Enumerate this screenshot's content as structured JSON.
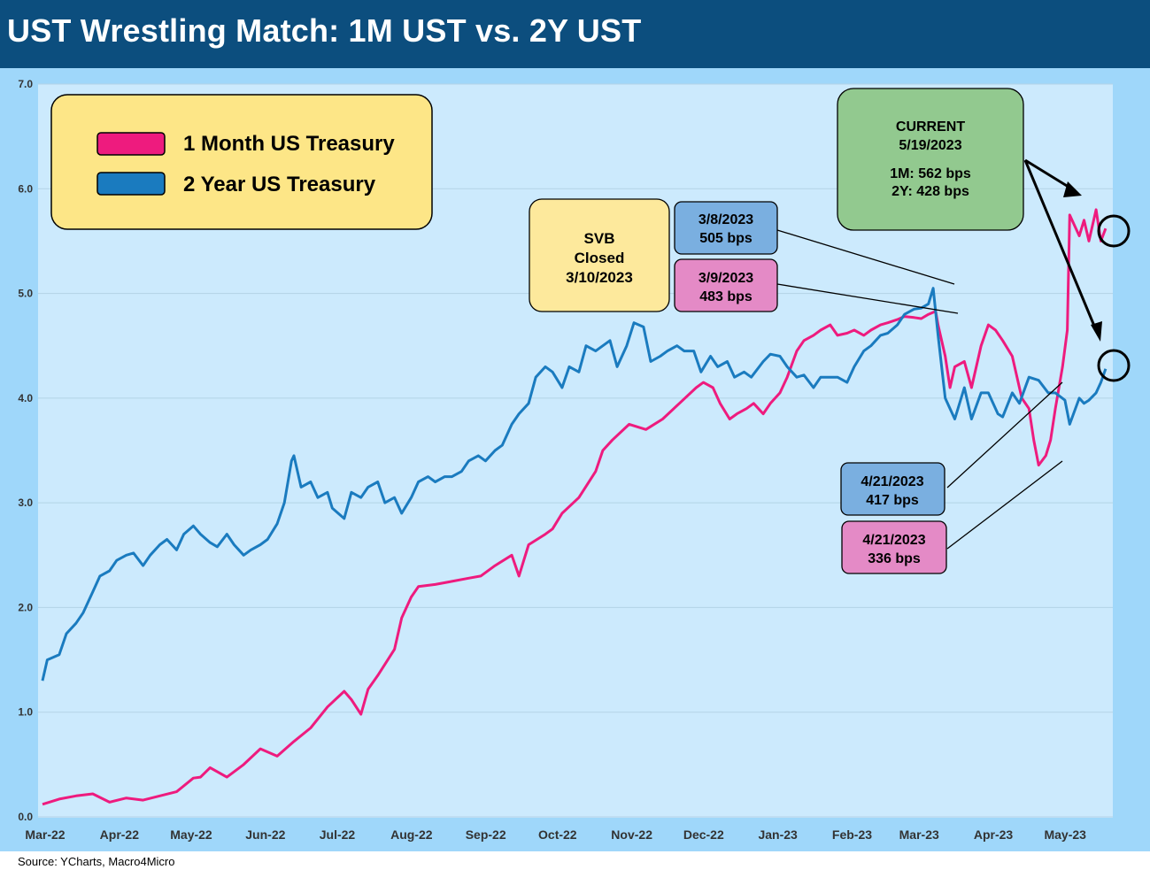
{
  "header": {
    "title": "UST Wrestling Match: 1M UST vs. 2Y UST"
  },
  "footer": {
    "source": "Source: YCharts, Macro4Micro"
  },
  "colors": {
    "header_bg": "#0c4e7e",
    "frame_bg": "#9fd7fa",
    "plot_bg": "#cceafd",
    "series_1m": "#ee1b7e",
    "series_2y": "#1a7bbf"
  },
  "chart_data": {
    "type": "line",
    "title": "UST Wrestling Match: 1M UST vs. 2Y UST",
    "xlabel": "",
    "ylabel": "",
    "ylim": [
      0,
      7
    ],
    "yticks": [
      "0.0",
      "1.0",
      "2.0",
      "3.0",
      "4.0",
      "5.0",
      "6.0",
      "7.0"
    ],
    "xticks": [
      "Mar-22",
      "Apr-22",
      "May-22",
      "Jun-22",
      "Jul-22",
      "Aug-22",
      "Sep-22",
      "Oct-22",
      "Nov-22",
      "Dec-22",
      "Jan-23",
      "Feb-23",
      "Mar-23",
      "Apr-23",
      "May-23"
    ],
    "grid": true,
    "legend_position": "top-left",
    "series": [
      {
        "name": "1 Month US Treasury",
        "color": "#ee1b7e",
        "points": [
          [
            "2022-03-01",
            0.12
          ],
          [
            "2022-03-08",
            0.17
          ],
          [
            "2022-03-15",
            0.2
          ],
          [
            "2022-03-22",
            0.22
          ],
          [
            "2022-03-29",
            0.14
          ],
          [
            "2022-04-05",
            0.18
          ],
          [
            "2022-04-12",
            0.16
          ],
          [
            "2022-04-19",
            0.2
          ],
          [
            "2022-04-26",
            0.24
          ],
          [
            "2022-05-03",
            0.37
          ],
          [
            "2022-05-06",
            0.38
          ],
          [
            "2022-05-10",
            0.47
          ],
          [
            "2022-05-17",
            0.38
          ],
          [
            "2022-05-24",
            0.5
          ],
          [
            "2022-05-31",
            0.65
          ],
          [
            "2022-06-07",
            0.58
          ],
          [
            "2022-06-14",
            0.72
          ],
          [
            "2022-06-21",
            0.85
          ],
          [
            "2022-06-28",
            1.05
          ],
          [
            "2022-07-05",
            1.2
          ],
          [
            "2022-07-08",
            1.12
          ],
          [
            "2022-07-12",
            0.98
          ],
          [
            "2022-07-15",
            1.22
          ],
          [
            "2022-07-19",
            1.35
          ],
          [
            "2022-07-26",
            1.6
          ],
          [
            "2022-07-29",
            1.9
          ],
          [
            "2022-08-02",
            2.1
          ],
          [
            "2022-08-05",
            2.2
          ],
          [
            "2022-08-12",
            2.22
          ],
          [
            "2022-08-19",
            2.25
          ],
          [
            "2022-08-26",
            2.28
          ],
          [
            "2022-08-31",
            2.3
          ],
          [
            "2022-09-06",
            2.4
          ],
          [
            "2022-09-13",
            2.5
          ],
          [
            "2022-09-16",
            2.3
          ],
          [
            "2022-09-20",
            2.6
          ],
          [
            "2022-09-27",
            2.7
          ],
          [
            "2022-09-30",
            2.75
          ],
          [
            "2022-10-04",
            2.9
          ],
          [
            "2022-10-11",
            3.05
          ],
          [
            "2022-10-18",
            3.3
          ],
          [
            "2022-10-21",
            3.5
          ],
          [
            "2022-10-25",
            3.6
          ],
          [
            "2022-11-01",
            3.75
          ],
          [
            "2022-11-08",
            3.7
          ],
          [
            "2022-11-15",
            3.8
          ],
          [
            "2022-11-22",
            3.95
          ],
          [
            "2022-11-29",
            4.1
          ],
          [
            "2022-12-02",
            4.15
          ],
          [
            "2022-12-06",
            4.1
          ],
          [
            "2022-12-09",
            3.95
          ],
          [
            "2022-12-13",
            3.8
          ],
          [
            "2022-12-16",
            3.85
          ],
          [
            "2022-12-20",
            3.9
          ],
          [
            "2022-12-23",
            3.95
          ],
          [
            "2022-12-27",
            3.85
          ],
          [
            "2022-12-30",
            3.95
          ],
          [
            "2023-01-03",
            4.05
          ],
          [
            "2023-01-06",
            4.2
          ],
          [
            "2023-01-10",
            4.45
          ],
          [
            "2023-01-13",
            4.55
          ],
          [
            "2023-01-17",
            4.6
          ],
          [
            "2023-01-20",
            4.65
          ],
          [
            "2023-01-24",
            4.7
          ],
          [
            "2023-01-27",
            4.6
          ],
          [
            "2023-01-31",
            4.62
          ],
          [
            "2023-02-03",
            4.65
          ],
          [
            "2023-02-07",
            4.6
          ],
          [
            "2023-02-10",
            4.65
          ],
          [
            "2023-02-14",
            4.7
          ],
          [
            "2023-02-17",
            4.72
          ],
          [
            "2023-02-21",
            4.75
          ],
          [
            "2023-02-24",
            4.78
          ],
          [
            "2023-02-28",
            4.77
          ],
          [
            "2023-03-03",
            4.76
          ],
          [
            "2023-03-06",
            4.8
          ],
          [
            "2023-03-09",
            4.83
          ],
          [
            "2023-03-10",
            4.7
          ],
          [
            "2023-03-13",
            4.4
          ],
          [
            "2023-03-15",
            4.1
          ],
          [
            "2023-03-17",
            4.3
          ],
          [
            "2023-03-21",
            4.35
          ],
          [
            "2023-03-24",
            4.1
          ],
          [
            "2023-03-28",
            4.5
          ],
          [
            "2023-03-31",
            4.7
          ],
          [
            "2023-04-03",
            4.65
          ],
          [
            "2023-04-06",
            4.55
          ],
          [
            "2023-04-10",
            4.4
          ],
          [
            "2023-04-12",
            4.2
          ],
          [
            "2023-04-14",
            4.0
          ],
          [
            "2023-04-17",
            3.9
          ],
          [
            "2023-04-19",
            3.6
          ],
          [
            "2023-04-21",
            3.36
          ],
          [
            "2023-04-24",
            3.45
          ],
          [
            "2023-04-26",
            3.6
          ],
          [
            "2023-04-28",
            3.9
          ],
          [
            "2023-05-01",
            4.3
          ],
          [
            "2023-05-03",
            4.65
          ],
          [
            "2023-05-04",
            5.75
          ],
          [
            "2023-05-08",
            5.55
          ],
          [
            "2023-05-10",
            5.7
          ],
          [
            "2023-05-12",
            5.5
          ],
          [
            "2023-05-15",
            5.8
          ],
          [
            "2023-05-17",
            5.5
          ],
          [
            "2023-05-19",
            5.62
          ]
        ]
      },
      {
        "name": "2 Year US Treasury",
        "color": "#1a7bbf",
        "points": [
          [
            "2022-03-01",
            1.3
          ],
          [
            "2022-03-03",
            1.5
          ],
          [
            "2022-03-08",
            1.55
          ],
          [
            "2022-03-11",
            1.75
          ],
          [
            "2022-03-15",
            1.85
          ],
          [
            "2022-03-18",
            1.95
          ],
          [
            "2022-03-22",
            2.15
          ],
          [
            "2022-03-25",
            2.3
          ],
          [
            "2022-03-29",
            2.35
          ],
          [
            "2022-04-01",
            2.45
          ],
          [
            "2022-04-05",
            2.5
          ],
          [
            "2022-04-08",
            2.52
          ],
          [
            "2022-04-12",
            2.4
          ],
          [
            "2022-04-15",
            2.5
          ],
          [
            "2022-04-19",
            2.6
          ],
          [
            "2022-04-22",
            2.65
          ],
          [
            "2022-04-26",
            2.55
          ],
          [
            "2022-04-29",
            2.7
          ],
          [
            "2022-05-03",
            2.78
          ],
          [
            "2022-05-06",
            2.7
          ],
          [
            "2022-05-10",
            2.62
          ],
          [
            "2022-05-13",
            2.58
          ],
          [
            "2022-05-17",
            2.7
          ],
          [
            "2022-05-20",
            2.6
          ],
          [
            "2022-05-24",
            2.5
          ],
          [
            "2022-05-27",
            2.55
          ],
          [
            "2022-05-31",
            2.6
          ],
          [
            "2022-06-03",
            2.65
          ],
          [
            "2022-06-07",
            2.8
          ],
          [
            "2022-06-10",
            3.0
          ],
          [
            "2022-06-13",
            3.4
          ],
          [
            "2022-06-14",
            3.45
          ],
          [
            "2022-06-17",
            3.15
          ],
          [
            "2022-06-21",
            3.2
          ],
          [
            "2022-06-24",
            3.05
          ],
          [
            "2022-06-28",
            3.1
          ],
          [
            "2022-06-30",
            2.95
          ],
          [
            "2022-07-05",
            2.85
          ],
          [
            "2022-07-08",
            3.1
          ],
          [
            "2022-07-12",
            3.05
          ],
          [
            "2022-07-15",
            3.15
          ],
          [
            "2022-07-19",
            3.2
          ],
          [
            "2022-07-22",
            3.0
          ],
          [
            "2022-07-26",
            3.05
          ],
          [
            "2022-07-29",
            2.9
          ],
          [
            "2022-08-02",
            3.05
          ],
          [
            "2022-08-05",
            3.2
          ],
          [
            "2022-08-09",
            3.25
          ],
          [
            "2022-08-12",
            3.2
          ],
          [
            "2022-08-16",
            3.25
          ],
          [
            "2022-08-19",
            3.25
          ],
          [
            "2022-08-23",
            3.3
          ],
          [
            "2022-08-26",
            3.4
          ],
          [
            "2022-08-30",
            3.45
          ],
          [
            "2022-09-02",
            3.4
          ],
          [
            "2022-09-06",
            3.5
          ],
          [
            "2022-09-09",
            3.55
          ],
          [
            "2022-09-13",
            3.75
          ],
          [
            "2022-09-16",
            3.85
          ],
          [
            "2022-09-20",
            3.95
          ],
          [
            "2022-09-23",
            4.2
          ],
          [
            "2022-09-27",
            4.3
          ],
          [
            "2022-09-30",
            4.25
          ],
          [
            "2022-10-04",
            4.1
          ],
          [
            "2022-10-07",
            4.3
          ],
          [
            "2022-10-11",
            4.25
          ],
          [
            "2022-10-14",
            4.5
          ],
          [
            "2022-10-18",
            4.45
          ],
          [
            "2022-10-21",
            4.5
          ],
          [
            "2022-10-24",
            4.55
          ],
          [
            "2022-10-27",
            4.3
          ],
          [
            "2022-10-31",
            4.5
          ],
          [
            "2022-11-03",
            4.72
          ],
          [
            "2022-11-07",
            4.68
          ],
          [
            "2022-11-10",
            4.35
          ],
          [
            "2022-11-14",
            4.4
          ],
          [
            "2022-11-17",
            4.45
          ],
          [
            "2022-11-21",
            4.5
          ],
          [
            "2022-11-24",
            4.45
          ],
          [
            "2022-11-28",
            4.45
          ],
          [
            "2022-12-01",
            4.25
          ],
          [
            "2022-12-05",
            4.4
          ],
          [
            "2022-12-08",
            4.3
          ],
          [
            "2022-12-12",
            4.35
          ],
          [
            "2022-12-15",
            4.2
          ],
          [
            "2022-12-19",
            4.25
          ],
          [
            "2022-12-22",
            4.2
          ],
          [
            "2022-12-27",
            4.35
          ],
          [
            "2022-12-30",
            4.42
          ],
          [
            "2023-01-03",
            4.4
          ],
          [
            "2023-01-06",
            4.3
          ],
          [
            "2023-01-10",
            4.2
          ],
          [
            "2023-01-13",
            4.22
          ],
          [
            "2023-01-17",
            4.1
          ],
          [
            "2023-01-20",
            4.2
          ],
          [
            "2023-01-24",
            4.2
          ],
          [
            "2023-01-27",
            4.2
          ],
          [
            "2023-01-31",
            4.15
          ],
          [
            "2023-02-03",
            4.3
          ],
          [
            "2023-02-07",
            4.45
          ],
          [
            "2023-02-10",
            4.5
          ],
          [
            "2023-02-14",
            4.6
          ],
          [
            "2023-02-17",
            4.62
          ],
          [
            "2023-02-21",
            4.7
          ],
          [
            "2023-02-24",
            4.8
          ],
          [
            "2023-02-28",
            4.85
          ],
          [
            "2023-03-03",
            4.86
          ],
          [
            "2023-03-06",
            4.9
          ],
          [
            "2023-03-08",
            5.05
          ],
          [
            "2023-03-10",
            4.6
          ],
          [
            "2023-03-13",
            4.0
          ],
          [
            "2023-03-15",
            3.9
          ],
          [
            "2023-03-17",
            3.8
          ],
          [
            "2023-03-21",
            4.1
          ],
          [
            "2023-03-24",
            3.8
          ],
          [
            "2023-03-28",
            4.05
          ],
          [
            "2023-03-31",
            4.05
          ],
          [
            "2023-04-04",
            3.85
          ],
          [
            "2023-04-06",
            3.82
          ],
          [
            "2023-04-10",
            4.05
          ],
          [
            "2023-04-13",
            3.95
          ],
          [
            "2023-04-17",
            4.2
          ],
          [
            "2023-04-21",
            4.17
          ],
          [
            "2023-04-25",
            4.05
          ],
          [
            "2023-04-28",
            4.05
          ],
          [
            "2023-05-02",
            3.98
          ],
          [
            "2023-05-04",
            3.75
          ],
          [
            "2023-05-08",
            4.0
          ],
          [
            "2023-05-10",
            3.95
          ],
          [
            "2023-05-12",
            3.98
          ],
          [
            "2023-05-15",
            4.05
          ],
          [
            "2023-05-17",
            4.15
          ],
          [
            "2023-05-19",
            4.28
          ]
        ]
      }
    ],
    "annotations": {
      "svb": {
        "line1": "SVB",
        "line2": "Closed",
        "line3": "3/10/2023"
      },
      "peak_2y": {
        "date": "3/8/2023",
        "value": "505 bps"
      },
      "peak_1m": {
        "date": "3/9/2023",
        "value": "483 bps"
      },
      "current": {
        "line1": "CURRENT",
        "line2": "5/19/2023",
        "line3": "1M: 562 bps",
        "line4": "2Y: 428 bps"
      },
      "trough_2y": {
        "date": "4/21/2023",
        "value": "417 bps"
      },
      "trough_1m": {
        "date": "4/21/2023",
        "value": "336 bps"
      }
    }
  }
}
